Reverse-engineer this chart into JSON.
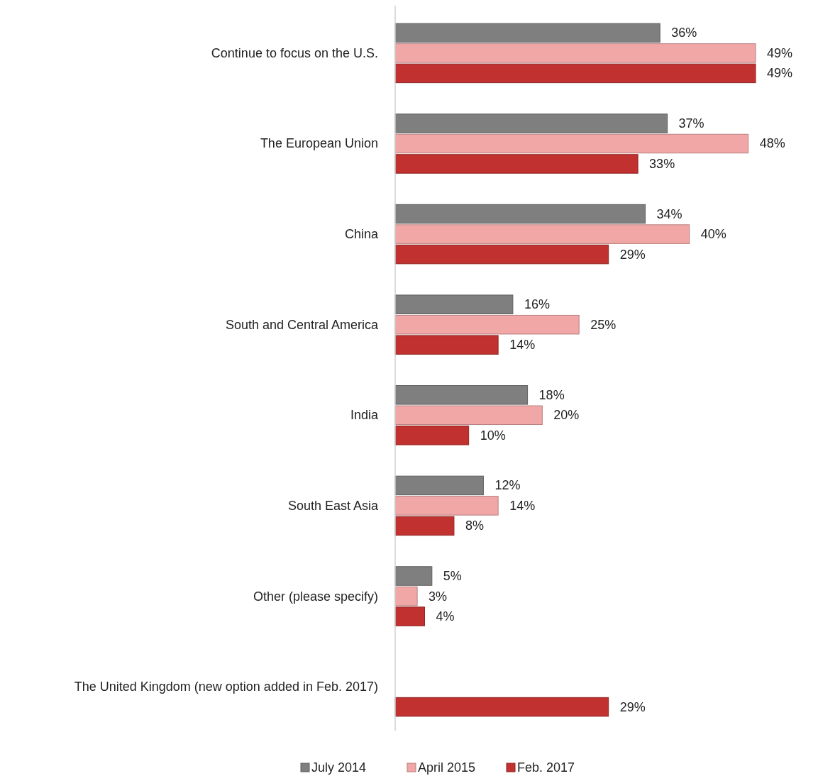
{
  "chart_data": {
    "type": "bar",
    "orientation": "horizontal",
    "categories": [
      "Continue to focus on the U.S.",
      "The European Union",
      "China",
      "South and Central America",
      "India",
      "South East Asia",
      "Other (please specify)",
      "The United Kingdom (new option added in Feb. 2017)"
    ],
    "series": [
      {
        "name": "July 2014",
        "color": "#7f7f7f",
        "values": [
          36,
          37,
          34,
          16,
          18,
          12,
          5,
          null
        ],
        "value_labels": [
          "36%",
          "37%",
          "34%",
          "16%",
          "18%",
          "12%",
          "5%",
          null
        ]
      },
      {
        "name": "April 2015",
        "color": "#f2a7a7",
        "values": [
          49,
          48,
          40,
          25,
          20,
          14,
          3,
          null
        ],
        "value_labels": [
          "49%",
          "48%",
          "40%",
          "25%",
          "20%",
          "14%",
          "3%",
          null
        ]
      },
      {
        "name": "Feb. 2017",
        "color": "#c0312f",
        "values": [
          49,
          33,
          29,
          14,
          10,
          8,
          4,
          29
        ],
        "value_labels": [
          "49%",
          "33%",
          "29%",
          "14%",
          "10%",
          "8%",
          "4%",
          "29%"
        ]
      }
    ],
    "legend": "bottom"
  }
}
